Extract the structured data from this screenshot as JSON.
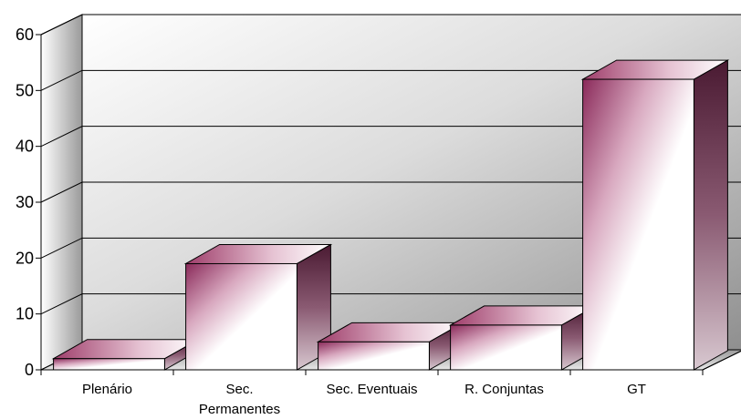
{
  "chart_data": {
    "type": "bar",
    "title": "",
    "xlabel": "",
    "ylabel": "",
    "categories": [
      "Plenário",
      "Sec. Permanentes",
      "Sec. Eventuais",
      "R. Conjuntas",
      "GT"
    ],
    "category_lines": [
      [
        "Plenário"
      ],
      [
        "Sec.",
        "Permanentes"
      ],
      [
        "Sec. Eventuais"
      ],
      [
        "R. Conjuntas"
      ],
      [
        "GT"
      ]
    ],
    "values": [
      2,
      19,
      5,
      8,
      52
    ],
    "ylim": [
      0,
      60
    ],
    "yticks": [
      "0",
      "10",
      "20",
      "30",
      "40",
      "50",
      "60"
    ],
    "grid": true,
    "legend": "none",
    "style": "3d",
    "colors": {
      "bar_dark": "#8a2a5a",
      "bar_light": "#ffffff",
      "bar_side": "#5a1f3a",
      "wall_light": "#ffffff",
      "wall_dark": "#8c8c8c"
    }
  }
}
